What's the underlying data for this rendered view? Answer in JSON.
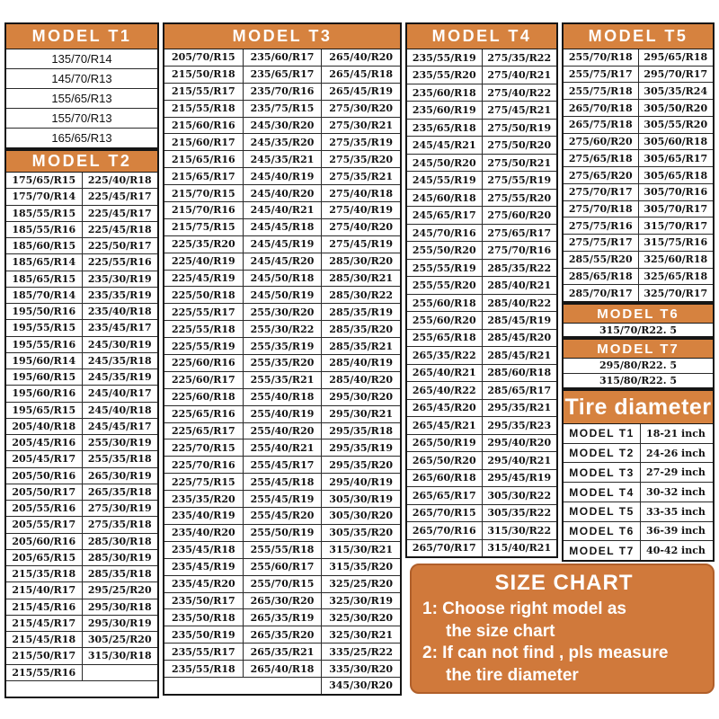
{
  "colors": {
    "header_orange": "#D6823F",
    "box_orange": "#D0793B",
    "box_border": "#B05F2A"
  },
  "t1": {
    "title": "MODEL T1",
    "rows": [
      [
        "135/70/R14"
      ],
      [
        "145/70/R13"
      ],
      [
        "155/65/R13"
      ],
      [
        "155/70/R13"
      ],
      [
        "165/65/R13"
      ]
    ]
  },
  "t2": {
    "title": "MODEL T2",
    "rows": [
      [
        "175/65/R15",
        "225/40/R18"
      ],
      [
        "175/70/R14",
        "225/45/R17"
      ],
      [
        "185/55/R15",
        "225/45/R17"
      ],
      [
        "185/55/R16",
        "225/45/R18"
      ],
      [
        "185/60/R15",
        "225/50/R17"
      ],
      [
        "185/65/R14",
        "225/55/R16"
      ],
      [
        "185/65/R15",
        "235/30/R19"
      ],
      [
        "185/70/R14",
        "235/35/R19"
      ],
      [
        "195/50/R16",
        "235/40/R18"
      ],
      [
        "195/55/R15",
        "235/45/R17"
      ],
      [
        "195/55/R16",
        "245/30/R19"
      ],
      [
        "195/60/R14",
        "245/35/R18"
      ],
      [
        "195/60/R15",
        "245/35/R19"
      ],
      [
        "195/60/R16",
        "245/40/R17"
      ],
      [
        "195/65/R15",
        "245/40/R18"
      ],
      [
        "205/40/R18",
        "245/45/R17"
      ],
      [
        "205/45/R16",
        "255/30/R19"
      ],
      [
        "205/45/R17",
        "255/35/R18"
      ],
      [
        "205/50/R16",
        "265/30/R19"
      ],
      [
        "205/50/R17",
        "265/35/R18"
      ],
      [
        "205/55/R16",
        "275/30/R19"
      ],
      [
        "205/55/R17",
        "275/35/R18"
      ],
      [
        "205/60/R16",
        "285/30/R18"
      ],
      [
        "205/65/R15",
        "285/30/R19"
      ],
      [
        "215/35/R18",
        "285/35/R18"
      ],
      [
        "215/40/R17",
        "295/25/R20"
      ],
      [
        "215/45/R16",
        "295/30/R18"
      ],
      [
        "215/45/R17",
        "295/30/R19"
      ],
      [
        "215/45/R18",
        "305/25/R20"
      ],
      [
        "215/50/R17",
        "315/30/R18"
      ],
      [
        "215/55/R16",
        ""
      ],
      [
        {
          "t": "",
          "s": 2
        }
      ]
    ]
  },
  "t3": {
    "title": "MODEL T3",
    "rows": [
      [
        "205/70/R15",
        "235/60/R17",
        "265/40/R20"
      ],
      [
        "215/50/R18",
        "235/65/R17",
        "265/45/R18"
      ],
      [
        "215/55/R17",
        "235/70/R16",
        "265/45/R19"
      ],
      [
        "215/55/R18",
        "235/75/R15",
        "275/30/R20"
      ],
      [
        "215/60/R16",
        "245/30/R20",
        "275/30/R21"
      ],
      [
        "215/60/R17",
        "245/35/R20",
        "275/35/R19"
      ],
      [
        "215/65/R16",
        "245/35/R21",
        "275/35/R20"
      ],
      [
        "215/65/R17",
        "245/40/R19",
        "275/35/R21"
      ],
      [
        "215/70/R15",
        "245/40/R20",
        "275/40/R18"
      ],
      [
        "215/70/R16",
        "245/40/R21",
        "275/40/R19"
      ],
      [
        "215/75/R15",
        "245/45/R18",
        "275/40/R20"
      ],
      [
        "225/35/R20",
        "245/45/R19",
        "275/45/R19"
      ],
      [
        "225/40/R19",
        "245/45/R20",
        "285/30/R20"
      ],
      [
        "225/45/R19",
        "245/50/R18",
        "285/30/R21"
      ],
      [
        "225/50/R18",
        "245/50/R19",
        "285/30/R22"
      ],
      [
        "225/55/R17",
        "255/30/R20",
        "285/35/R19"
      ],
      [
        "225/55/R18",
        "255/30/R22",
        "285/35/R20"
      ],
      [
        "225/55/R19",
        "255/35/R19",
        "285/35/R21"
      ],
      [
        "225/60/R16",
        "255/35/R20",
        "285/40/R19"
      ],
      [
        "225/60/R17",
        "255/35/R21",
        "285/40/R20"
      ],
      [
        "225/60/R18",
        "255/40/R18",
        "295/30/R20"
      ],
      [
        "225/65/R16",
        "255/40/R19",
        "295/30/R21"
      ],
      [
        "225/65/R17",
        "255/40/R20",
        "295/35/R18"
      ],
      [
        "225/70/R15",
        "255/40/R21",
        "295/35/R19"
      ],
      [
        "225/70/R16",
        "255/45/R17",
        "295/35/R20"
      ],
      [
        "225/75/R15",
        "255/45/R18",
        "295/40/R19"
      ],
      [
        "235/35/R20",
        "255/45/R19",
        "305/30/R19"
      ],
      [
        "235/40/R19",
        "255/45/R20",
        "305/30/R20"
      ],
      [
        "235/40/R20",
        "255/50/R19",
        "305/35/R20"
      ],
      [
        "235/45/R18",
        "255/55/R18",
        "315/30/R21"
      ],
      [
        "235/45/R19",
        "255/60/R17",
        "315/35/R20"
      ],
      [
        "235/45/R20",
        "255/70/R15",
        "325/25/R20"
      ],
      [
        "235/50/R17",
        "265/30/R20",
        "325/30/R19"
      ],
      [
        "235/50/R18",
        "265/35/R19",
        "325/30/R20"
      ],
      [
        "235/50/R19",
        "265/35/R20",
        "325/30/R21"
      ],
      [
        "235/55/R17",
        "265/35/R21",
        "335/25/R22"
      ],
      [
        "235/55/R18",
        "265/40/R18",
        "335/30/R20"
      ],
      [
        {
          "t": "",
          "s": 2
        },
        "345/30/R20"
      ]
    ]
  },
  "t4": {
    "title": "MODEL T4",
    "rows": [
      [
        "235/55/R19",
        "275/35/R22"
      ],
      [
        "235/55/R20",
        "275/40/R21"
      ],
      [
        "235/60/R18",
        "275/40/R22"
      ],
      [
        "235/60/R19",
        "275/45/R21"
      ],
      [
        "235/65/R18",
        "275/50/R19"
      ],
      [
        "245/45/R21",
        "275/50/R20"
      ],
      [
        "245/50/R20",
        "275/50/R21"
      ],
      [
        "245/55/R19",
        "275/55/R19"
      ],
      [
        "245/60/R18",
        "275/55/R20"
      ],
      [
        "245/65/R17",
        "275/60/R20"
      ],
      [
        "245/70/R16",
        "275/65/R17"
      ],
      [
        "255/50/R20",
        "275/70/R16"
      ],
      [
        "255/55/R19",
        "285/35/R22"
      ],
      [
        "255/55/R20",
        "285/40/R21"
      ],
      [
        "255/60/R18",
        "285/40/R22"
      ],
      [
        "255/60/R20",
        "285/45/R19"
      ],
      [
        "255/65/R18",
        "285/45/R20"
      ],
      [
        "265/35/R22",
        "285/45/R21"
      ],
      [
        "265/40/R21",
        "285/60/R18"
      ],
      [
        "265/40/R22",
        "285/65/R17"
      ],
      [
        "265/45/R20",
        "295/35/R21"
      ],
      [
        "265/45/R21",
        "295/35/R23"
      ],
      [
        "265/50/R19",
        "295/40/R20"
      ],
      [
        "265/50/R20",
        "295/40/R21"
      ],
      [
        "265/60/R18",
        "295/45/R19"
      ],
      [
        "265/65/R17",
        "305/30/R22"
      ],
      [
        "265/70/R15",
        "305/35/R22"
      ],
      [
        "265/70/R16",
        "315/30/R22"
      ],
      [
        "265/70/R17",
        "315/40/R21"
      ]
    ]
  },
  "t5": {
    "title": "MODEL T5",
    "rows": [
      [
        "255/70/R18",
        "295/65/R18"
      ],
      [
        "255/75/R17",
        "295/70/R17"
      ],
      [
        "255/75/R18",
        "305/35/R24"
      ],
      [
        "265/70/R18",
        "305/50/R20"
      ],
      [
        "265/75/R18",
        "305/55/R20"
      ],
      [
        "275/60/R20",
        "305/60/R18"
      ],
      [
        "275/65/R18",
        "305/65/R17"
      ],
      [
        "275/65/R20",
        "305/65/R18"
      ],
      [
        "275/70/R17",
        "305/70/R16"
      ],
      [
        "275/70/R18",
        "305/70/R17"
      ],
      [
        "275/75/R16",
        "315/70/R17"
      ],
      [
        "275/75/R17",
        "315/75/R16"
      ],
      [
        "285/55/R20",
        "325/60/R18"
      ],
      [
        "285/65/R18",
        "325/65/R18"
      ],
      [
        "285/70/R17",
        "325/70/R17"
      ]
    ]
  },
  "t6": {
    "title": "MODEL T6",
    "rows": [
      [
        "315/70/R22. 5"
      ]
    ]
  },
  "t7": {
    "title": "MODEL T7",
    "rows": [
      [
        "295/80/R22. 5"
      ],
      [
        "315/80/R22. 5"
      ]
    ]
  },
  "diameter": {
    "title": "Tire diameter",
    "rows": [
      [
        "MODEL T1",
        "18-21 inch"
      ],
      [
        "MODEL T2",
        "24-26 inch"
      ],
      [
        "MODEL T3",
        "27-29 inch"
      ],
      [
        "MODEL T4",
        "30-32 inch"
      ],
      [
        "MODEL T5",
        "33-35 inch"
      ],
      [
        "MODEL T6",
        "36-39 inch"
      ],
      [
        "MODEL T7",
        "40-42 inch"
      ]
    ]
  },
  "size_chart": {
    "title": "SIZE CHART",
    "lines": [
      "1: Choose right model as",
      "the size chart",
      "2: If can not find , pls measure",
      "the tire diameter"
    ]
  }
}
